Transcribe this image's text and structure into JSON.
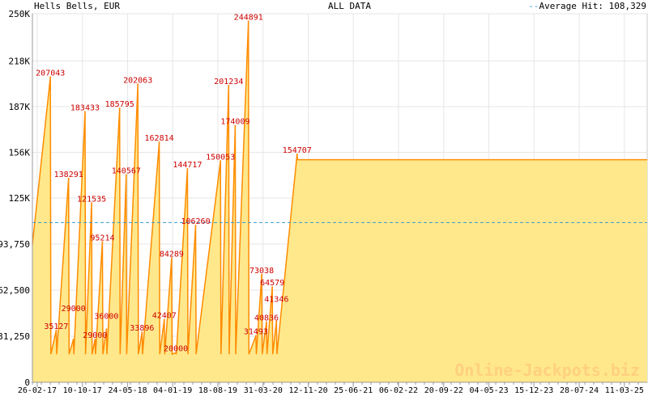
{
  "header": {
    "title": "Hells Bells, EUR",
    "center": "ALL DATA",
    "legend_label": "Average Hit: 108,329"
  },
  "watermark": "Online-Jackpots.biz",
  "colors": {
    "fill": "#FFE88C",
    "line": "#FF8C00",
    "label": "#CC0000",
    "average": "#3399CC",
    "grid": "#E6E6E6"
  },
  "chart_data": {
    "type": "area",
    "title": "Hells Bells, EUR",
    "subtitle": "ALL DATA",
    "ylim": [
      0,
      250000
    ],
    "xlim": [
      "2017-02-02",
      "2025-07-03"
    ],
    "y_ticks": [
      0,
      31250,
      62500,
      93750,
      125000,
      156000,
      187000,
      218000,
      250000
    ],
    "y_tick_labels": [
      "0",
      "31,250",
      "62,500",
      "93,750",
      "125K",
      "156K",
      "187K",
      "218K",
      "250K"
    ],
    "x_ticks": [
      "2017-02-26",
      "2017-10-10",
      "2018-05-24",
      "2019-01-04",
      "2019-08-18",
      "2020-03-31",
      "2020-11-12",
      "2021-06-25",
      "2022-02-06",
      "2022-09-20",
      "2023-05-04",
      "2023-12-15",
      "2024-07-28",
      "2025-03-11"
    ],
    "x_tick_labels": [
      "26-02-17",
      "10-10-17",
      "24-05-18",
      "04-01-19",
      "18-08-19",
      "31-03-20",
      "12-11-20",
      "25-06-21",
      "06-02-22",
      "20-09-22",
      "04-05-23",
      "15-12-23",
      "28-07-24",
      "11-03-25"
    ],
    "grid": true,
    "reset_value": 19000,
    "start": [
      "2017-02-02",
      93475
    ],
    "average_hit": 108329,
    "hits": [
      [
        "2017-05-03",
        207043
      ],
      [
        "2017-06-01",
        35127
      ],
      [
        "2017-08-02",
        138291
      ],
      [
        "2017-08-26",
        29000
      ],
      [
        "2017-10-23",
        183433
      ],
      [
        "2017-11-25",
        121535
      ],
      [
        "2017-12-12",
        29000
      ],
      [
        "2018-01-18",
        95214
      ],
      [
        "2018-02-07",
        36000
      ],
      [
        "2018-04-14",
        185795
      ],
      [
        "2018-05-17",
        140567
      ],
      [
        "2018-07-14",
        202063
      ],
      [
        "2018-08-04",
        33896
      ],
      [
        "2018-10-29",
        162814
      ],
      [
        "2018-11-23",
        42407
      ],
      [
        "2018-12-30",
        84289
      ],
      [
        "2019-01-20",
        20000
      ],
      [
        "2019-03-19",
        144717
      ],
      [
        "2019-04-29",
        106260
      ],
      [
        "2019-08-31",
        150053
      ],
      [
        "2019-10-11",
        201234
      ],
      [
        "2019-11-13",
        174009
      ],
      [
        "2020-01-18",
        244891
      ],
      [
        "2020-02-24",
        31493
      ],
      [
        "2020-03-24",
        73038
      ],
      [
        "2020-04-17",
        40836
      ],
      [
        "2020-05-16",
        64579
      ],
      [
        "2020-06-06",
        41346
      ],
      [
        "2020-09-17",
        154707
      ]
    ],
    "end": [
      "2025-07-03",
      151000
    ]
  }
}
